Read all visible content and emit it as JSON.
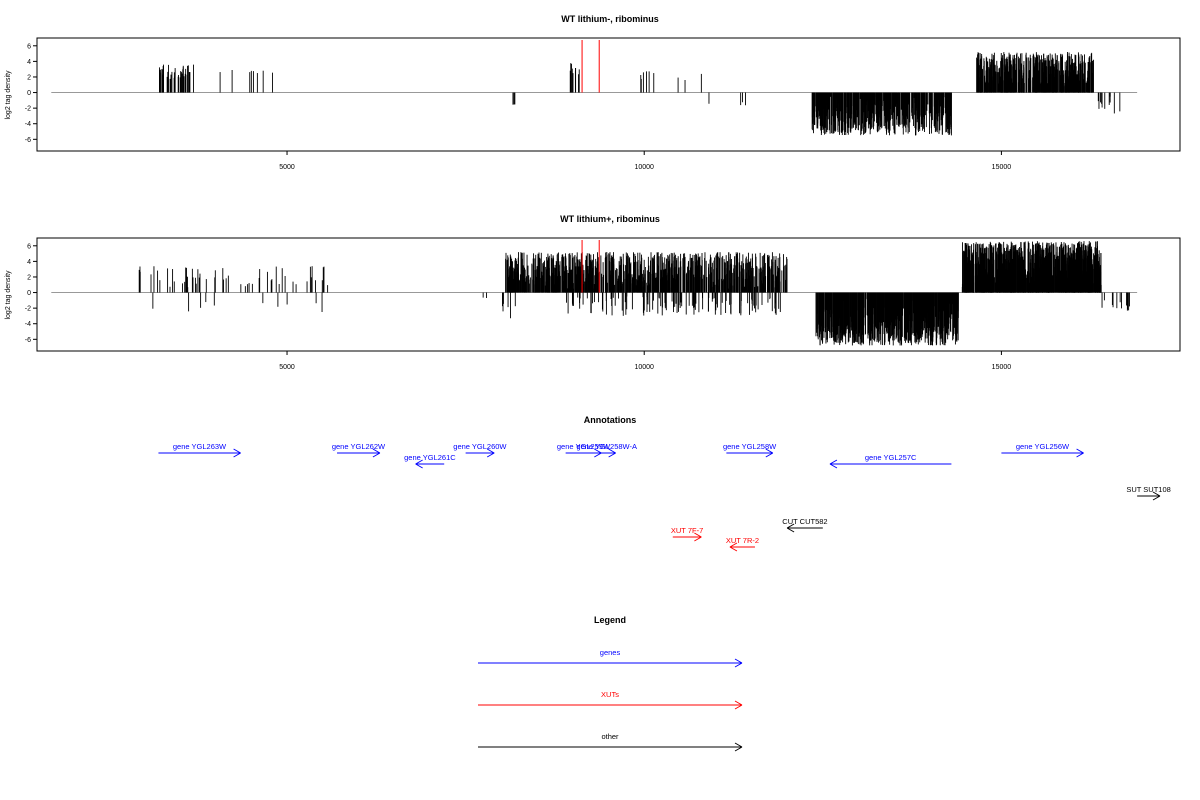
{
  "colors": {
    "gene": "#0000ff",
    "xut": "#ff0000",
    "other": "#000000",
    "bar": "#000000",
    "highlight": "#ff0000",
    "baseline": "#999999"
  },
  "chart_data": [
    {
      "type": "bar",
      "title": "WT lithium-, ribominus",
      "ylabel": "log2 tag density",
      "xlim": [
        1500,
        17500
      ],
      "ylim": [
        -7.5,
        7
      ],
      "baseline_range": [
        1700,
        16900
      ],
      "x_ticks": [
        5000,
        10000,
        15000
      ],
      "y_ticks": [
        6,
        4,
        2,
        0,
        -2,
        -4,
        -6
      ],
      "highlight_lines": [
        9130,
        9370
      ],
      "segments": [
        {
          "x_start": 3200,
          "x_end": 3700,
          "density": 0.08,
          "amp": [
            1.5,
            3.6
          ],
          "sign": 1
        },
        {
          "x_start": 4000,
          "x_end": 4800,
          "density": 0.01,
          "amp": [
            2.5,
            2.9
          ],
          "sign": 1
        },
        {
          "x_start": 8150,
          "x_end": 8200,
          "density": 0.05,
          "amp": [
            1.5,
            2.0
          ],
          "sign": -1
        },
        {
          "x_start": 8900,
          "x_end": 9100,
          "density": 0.05,
          "amp": [
            1.8,
            3.8
          ],
          "sign": 1
        },
        {
          "x_start": 9900,
          "x_end": 10800,
          "density": 0.01,
          "amp": [
            1.0,
            2.8
          ],
          "sign": 1
        },
        {
          "x_start": 10700,
          "x_end": 11500,
          "density": 0.005,
          "amp": [
            1.0,
            2.3
          ],
          "sign": -1
        },
        {
          "x_start": 12350,
          "x_end": 14300,
          "density": 0.3,
          "amp": [
            0.5,
            5.5
          ],
          "sign": -1
        },
        {
          "x_start": 14650,
          "x_end": 16300,
          "density": 0.3,
          "amp": [
            0.5,
            5.2
          ],
          "sign": 1
        },
        {
          "x_start": 16350,
          "x_end": 16700,
          "density": 0.03,
          "amp": [
            0.5,
            2.8
          ],
          "sign": -1
        }
      ]
    },
    {
      "type": "bar",
      "title": "WT lithium+, ribominus",
      "ylabel": "log2 tag density",
      "xlim": [
        1500,
        17500
      ],
      "ylim": [
        -7.5,
        7
      ],
      "baseline_range": [
        1700,
        16900
      ],
      "x_ticks": [
        5000,
        10000,
        15000
      ],
      "y_ticks": [
        6,
        4,
        2,
        0,
        -2,
        -4,
        -6
      ],
      "highlight_lines": [
        9130,
        9370
      ],
      "segments": [
        {
          "x_start": 2900,
          "x_end": 5800,
          "density": 0.02,
          "amp": [
            0.6,
            3.4
          ],
          "sign": 1
        },
        {
          "x_start": 2900,
          "x_end": 6300,
          "density": 0.003,
          "amp": [
            1.0,
            2.5
          ],
          "sign": -1
        },
        {
          "x_start": 7700,
          "x_end": 7800,
          "density": 0.02,
          "amp": [
            0.5,
            1.0
          ],
          "sign": -1
        },
        {
          "x_start": 8000,
          "x_end": 8200,
          "density": 0.03,
          "amp": [
            1.0,
            3.5
          ],
          "sign": -1
        },
        {
          "x_start": 8050,
          "x_end": 12000,
          "density": 0.22,
          "amp": [
            0.5,
            5.2
          ],
          "sign": 1
        },
        {
          "x_start": 8900,
          "x_end": 12000,
          "density": 0.04,
          "amp": [
            0.5,
            3.0
          ],
          "sign": -1
        },
        {
          "x_start": 12400,
          "x_end": 14400,
          "density": 0.4,
          "amp": [
            0.5,
            6.8
          ],
          "sign": -1
        },
        {
          "x_start": 14450,
          "x_end": 16400,
          "density": 0.5,
          "amp": [
            0.5,
            6.6
          ],
          "sign": 1
        },
        {
          "x_start": 16400,
          "x_end": 16800,
          "density": 0.03,
          "amp": [
            0.5,
            2.4
          ],
          "sign": -1
        }
      ]
    }
  ],
  "annotations": {
    "title": "Annotations",
    "items": [
      {
        "label": "gene YGL263W",
        "type": "gene",
        "strand": "+",
        "start": 3200,
        "end": 4350,
        "row": 0
      },
      {
        "label": "gene YGL262W",
        "type": "gene",
        "strand": "+",
        "start": 5700,
        "end": 6300,
        "row": 0
      },
      {
        "label": "gene YGL261C",
        "type": "gene",
        "strand": "-",
        "start": 6800,
        "end": 7200,
        "row": 1
      },
      {
        "label": "gene YGL260W",
        "type": "gene",
        "strand": "+",
        "start": 7500,
        "end": 7900,
        "row": 0
      },
      {
        "label": "gene YGL259W",
        "type": "gene",
        "strand": "+",
        "start": 8900,
        "end": 9400,
        "row": 0
      },
      {
        "label": "gene YGL258W-A",
        "type": "gene",
        "strand": "+",
        "start": 9350,
        "end": 9600,
        "row": 0
      },
      {
        "label": "gene YGL258W",
        "type": "gene",
        "strand": "+",
        "start": 11150,
        "end": 11800,
        "row": 0
      },
      {
        "label": "gene YGL257C",
        "type": "gene",
        "strand": "-",
        "start": 12600,
        "end": 14300,
        "row": 1
      },
      {
        "label": "gene YGL256W",
        "type": "gene",
        "strand": "+",
        "start": 15000,
        "end": 16150,
        "row": 0
      },
      {
        "label": "SUT SUT108",
        "type": "other",
        "strand": "+",
        "start": 16900,
        "end": 17500,
        "row": 2
      },
      {
        "label": "CUT CUT582",
        "type": "other",
        "strand": "-",
        "start": 12000,
        "end": 12500,
        "row": 3
      },
      {
        "label": "XUT 7F-7",
        "type": "xut",
        "strand": "+",
        "start": 10400,
        "end": 10800,
        "row": 4
      },
      {
        "label": "XUT 7R-2",
        "type": "xut",
        "strand": "-",
        "start": 11200,
        "end": 11550,
        "row": 5
      }
    ]
  },
  "legend": {
    "title": "Legend",
    "items": [
      {
        "label": "genes",
        "type": "gene"
      },
      {
        "label": "XUTs",
        "type": "xut"
      },
      {
        "label": "other",
        "type": "other"
      }
    ]
  }
}
